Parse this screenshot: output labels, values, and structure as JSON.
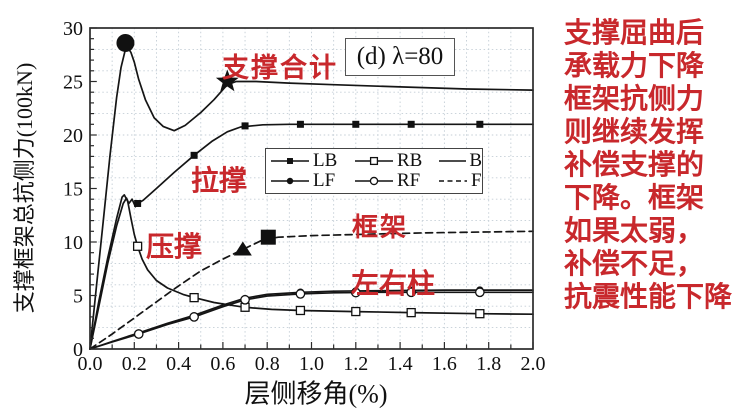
{
  "chart_data": {
    "type": "line",
    "condition_label": "(d) λ=80",
    "xlabel": "层侧移角(%)",
    "ylabel": "支撑框架总抗侧力(100kN)",
    "xlim": [
      0.0,
      2.0
    ],
    "ylim": [
      0,
      30
    ],
    "x_tick_labels": [
      "0.0",
      "0.2",
      "0.4",
      "0.6",
      "0.8",
      "1.0",
      "1.2",
      "1.4",
      "1.6",
      "1.8",
      "2.0"
    ],
    "y_tick_labels": [
      "0",
      "5",
      "10",
      "15",
      "20",
      "25",
      "30"
    ],
    "grid": {
      "x_step": 0.1,
      "y_step": 2,
      "style": "dotted"
    },
    "legend": {
      "position": "inside-middle-right",
      "entries": [
        {
          "label": "LB",
          "marker": "filled-square",
          "line": "solid"
        },
        {
          "label": "RB",
          "marker": "open-square",
          "line": "solid"
        },
        {
          "label": "B",
          "marker": "none",
          "line": "solid"
        },
        {
          "label": "LF",
          "marker": "filled-circle",
          "line": "solid"
        },
        {
          "label": "RF",
          "marker": "open-circle",
          "line": "solid"
        },
        {
          "label": "F",
          "marker": "none",
          "line": "dashed"
        }
      ]
    },
    "series": [
      {
        "name": "B",
        "label_cn": "支撑合计",
        "line": "solid",
        "marker": "none",
        "points": [
          [
            0,
            0
          ],
          [
            0.03,
            6
          ],
          [
            0.06,
            12
          ],
          [
            0.09,
            18
          ],
          [
            0.12,
            23.5
          ],
          [
            0.14,
            26.3
          ],
          [
            0.16,
            28.0
          ],
          [
            0.17,
            28.2
          ],
          [
            0.185,
            27.7
          ],
          [
            0.2,
            26.8
          ],
          [
            0.22,
            25.2
          ],
          [
            0.25,
            23.3
          ],
          [
            0.29,
            21.6
          ],
          [
            0.33,
            20.8
          ],
          [
            0.38,
            20.4
          ],
          [
            0.43,
            20.9
          ],
          [
            0.5,
            22.1
          ],
          [
            0.56,
            23.3
          ],
          [
            0.62,
            24.7
          ],
          [
            0.66,
            25.0
          ],
          [
            0.75,
            25.0
          ],
          [
            0.9,
            24.85
          ],
          [
            1.1,
            24.7
          ],
          [
            1.4,
            24.5
          ],
          [
            1.7,
            24.3
          ],
          [
            2.0,
            24.2
          ]
        ],
        "marker_points": []
      },
      {
        "name": "LB",
        "label_cn": "拉撑",
        "line": "solid",
        "marker": "filled-square",
        "points": [
          [
            0,
            0
          ],
          [
            0.04,
            4
          ],
          [
            0.08,
            8
          ],
          [
            0.12,
            11.5
          ],
          [
            0.15,
            13.6
          ],
          [
            0.165,
            14.1
          ],
          [
            0.175,
            13.6
          ],
          [
            0.19,
            14.0
          ],
          [
            0.205,
            13.3
          ],
          [
            0.215,
            13.6
          ],
          [
            0.24,
            13.9
          ],
          [
            0.3,
            15.0
          ],
          [
            0.38,
            16.5
          ],
          [
            0.47,
            18.1
          ],
          [
            0.55,
            19.4
          ],
          [
            0.62,
            20.3
          ],
          [
            0.68,
            20.75
          ],
          [
            0.78,
            20.95
          ],
          [
            0.9,
            21.0
          ],
          [
            1.2,
            21.0
          ],
          [
            1.5,
            21.0
          ],
          [
            2.0,
            21.0
          ]
        ],
        "marker_points": [
          [
            0.215,
            13.6
          ],
          [
            0.47,
            18.1
          ],
          [
            0.7,
            20.85
          ],
          [
            0.95,
            21.0
          ],
          [
            1.2,
            21.0
          ],
          [
            1.45,
            21.0
          ],
          [
            1.76,
            21.0
          ]
        ]
      },
      {
        "name": "RB",
        "label_cn": "压撑",
        "line": "solid",
        "marker": "open-square",
        "points": [
          [
            0,
            0
          ],
          [
            0.04,
            4.5
          ],
          [
            0.08,
            8.5
          ],
          [
            0.12,
            12.2
          ],
          [
            0.145,
            14.2
          ],
          [
            0.155,
            14.4
          ],
          [
            0.17,
            13.8
          ],
          [
            0.185,
            12.2
          ],
          [
            0.2,
            10.7
          ],
          [
            0.215,
            9.6
          ],
          [
            0.235,
            8.4
          ],
          [
            0.26,
            7.4
          ],
          [
            0.3,
            6.4
          ],
          [
            0.35,
            5.7
          ],
          [
            0.42,
            5.1
          ],
          [
            0.47,
            4.8
          ],
          [
            0.56,
            4.35
          ],
          [
            0.65,
            4.05
          ],
          [
            0.7,
            3.9
          ],
          [
            0.82,
            3.7
          ],
          [
            0.95,
            3.6
          ],
          [
            1.2,
            3.5
          ],
          [
            1.45,
            3.4
          ],
          [
            1.76,
            3.3
          ],
          [
            2.0,
            3.25
          ]
        ],
        "marker_points": [
          [
            0.215,
            9.6
          ],
          [
            0.47,
            4.8
          ],
          [
            0.7,
            3.9
          ],
          [
            0.95,
            3.6
          ],
          [
            1.2,
            3.5
          ],
          [
            1.45,
            3.4
          ],
          [
            1.76,
            3.3
          ]
        ]
      },
      {
        "name": "LF",
        "label_cn": "左右柱",
        "line": "solid",
        "marker": "filled-circle",
        "points": [
          [
            0,
            0
          ],
          [
            0.1,
            0.7
          ],
          [
            0.22,
            1.5
          ],
          [
            0.35,
            2.4
          ],
          [
            0.47,
            3.15
          ],
          [
            0.6,
            4.1
          ],
          [
            0.7,
            4.75
          ],
          [
            0.8,
            5.1
          ],
          [
            0.95,
            5.3
          ],
          [
            1.1,
            5.4
          ],
          [
            1.3,
            5.45
          ],
          [
            1.6,
            5.5
          ],
          [
            2.0,
            5.5
          ]
        ],
        "marker_points": [
          [
            0.95,
            5.3
          ],
          [
            1.2,
            5.42
          ],
          [
            1.45,
            5.47
          ],
          [
            1.76,
            5.5
          ]
        ]
      },
      {
        "name": "RF",
        "label_cn": "左右柱",
        "line": "solid",
        "marker": "open-circle",
        "points": [
          [
            0,
            0
          ],
          [
            0.1,
            0.65
          ],
          [
            0.22,
            1.4
          ],
          [
            0.35,
            2.3
          ],
          [
            0.47,
            3.0
          ],
          [
            0.6,
            3.95
          ],
          [
            0.7,
            4.6
          ],
          [
            0.8,
            4.95
          ],
          [
            0.95,
            5.15
          ],
          [
            1.1,
            5.25
          ],
          [
            1.3,
            5.3
          ],
          [
            1.6,
            5.3
          ],
          [
            2.0,
            5.3
          ]
        ],
        "marker_points": [
          [
            0.22,
            1.4
          ],
          [
            0.47,
            3.0
          ],
          [
            0.7,
            4.6
          ],
          [
            0.95,
            5.15
          ],
          [
            1.2,
            5.27
          ],
          [
            1.45,
            5.3
          ],
          [
            1.76,
            5.3
          ]
        ]
      },
      {
        "name": "F",
        "label_cn": "框架",
        "line": "dashed",
        "marker": "none",
        "points": [
          [
            0,
            0
          ],
          [
            0.1,
            1.4
          ],
          [
            0.2,
            2.9
          ],
          [
            0.3,
            4.4
          ],
          [
            0.4,
            5.9
          ],
          [
            0.5,
            7.3
          ],
          [
            0.6,
            8.4
          ],
          [
            0.69,
            9.3
          ],
          [
            0.78,
            10.2
          ],
          [
            0.85,
            10.45
          ],
          [
            1.0,
            10.6
          ],
          [
            1.2,
            10.7
          ],
          [
            1.5,
            10.85
          ],
          [
            2.0,
            11.0
          ]
        ],
        "marker_points": []
      }
    ],
    "annotation_markers": [
      {
        "shape": "circle",
        "x": 0.16,
        "y": 28.6
      },
      {
        "shape": "star",
        "x": 0.62,
        "y": 25.0
      },
      {
        "shape": "triangle",
        "x": 0.69,
        "y": 9.3
      },
      {
        "shape": "square",
        "x": 0.805,
        "y": 10.45
      }
    ]
  },
  "plot_labels": {
    "brace_total": "支撑合计",
    "tension_brace": "拉撑",
    "compression_brace": "压撑",
    "frame": "框架",
    "lr_columns": "左右柱"
  },
  "side_note": {
    "lines": [
      "支撑屈曲后",
      "承载力下降",
      "框架抗侧力",
      "则继续发挥",
      "补偿支撑的",
      "下降。框架",
      "如果太弱，",
      "补偿不足，",
      "抗震性能下降"
    ]
  },
  "colors": {
    "curve": "#151515",
    "grid": "#c4ced6",
    "annotation_red": "#c8282c"
  }
}
